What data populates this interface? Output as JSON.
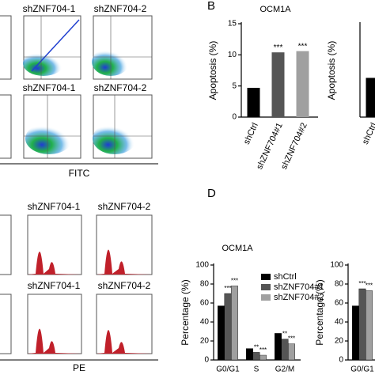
{
  "flow": {
    "labels": [
      [
        "shZNF704-1",
        "shZNF704-2"
      ],
      [
        "shZNF704-1",
        "shZNF704-2"
      ]
    ],
    "x_axis": "FITC"
  },
  "cell_cycle": {
    "labels": [
      [
        "shZNF704-1",
        "shZNF704-2"
      ],
      [
        "shZNF704-1",
        "shZNF704-2"
      ]
    ],
    "x_axis": "PE"
  },
  "chart_data": [
    {
      "type": "bar",
      "panel": "B",
      "title": "OCM1A",
      "y_label": "Apoptosis (%)",
      "categories": [
        "shCtrl",
        "shZNF704#1",
        "shZNF704#2"
      ],
      "values": [
        4.7,
        10.4,
        10.6
      ],
      "colors": [
        "#000000",
        "#555555",
        "#a0a0a0"
      ],
      "significance": [
        null,
        "***",
        "***"
      ],
      "ylim": [
        0,
        15
      ],
      "yticks": [
        0,
        5,
        10,
        15
      ]
    },
    {
      "type": "bar",
      "y_label": "Apoptosis (%)",
      "categories": [
        "shCtrl"
      ],
      "values": [
        6.3
      ],
      "colors": [
        "#000000"
      ],
      "ylim": [
        0,
        15
      ]
    },
    {
      "type": "grouped_bar",
      "panel": "D",
      "title": "OCM1A",
      "y_label": "Percentage (%)",
      "categories": [
        "G0/G1",
        "S",
        "G2/M"
      ],
      "ylim": [
        0,
        100
      ],
      "yticks": [
        0,
        20,
        40,
        60,
        80,
        100
      ],
      "series": [
        {
          "name": "shCtrl",
          "color": "#000000",
          "values": [
            57,
            12,
            28
          ],
          "significance": [
            null,
            null,
            null
          ]
        },
        {
          "name": "shZNF704#1",
          "color": "#555555",
          "values": [
            70,
            8,
            22
          ],
          "significance": [
            "***",
            "**",
            "**"
          ]
        },
        {
          "name": "shZNF704#2",
          "color": "#a0a0a0",
          "values": [
            78,
            5,
            17
          ],
          "significance": [
            "***",
            "***",
            "***"
          ]
        }
      ]
    },
    {
      "type": "grouped_bar",
      "y_label": "Percentage (%)",
      "categories": [
        "G0/G1"
      ],
      "ylim": [
        0,
        100
      ],
      "yticks": [
        0,
        20,
        40,
        60,
        80,
        100
      ],
      "series": [
        {
          "color": "#000000",
          "values": [
            57
          ],
          "significance": [
            null
          ]
        },
        {
          "color": "#555555",
          "values": [
            75
          ],
          "significance": [
            "***"
          ]
        },
        {
          "color": "#a0a0a0",
          "values": [
            73
          ],
          "significance": [
            "***"
          ]
        }
      ]
    }
  ]
}
